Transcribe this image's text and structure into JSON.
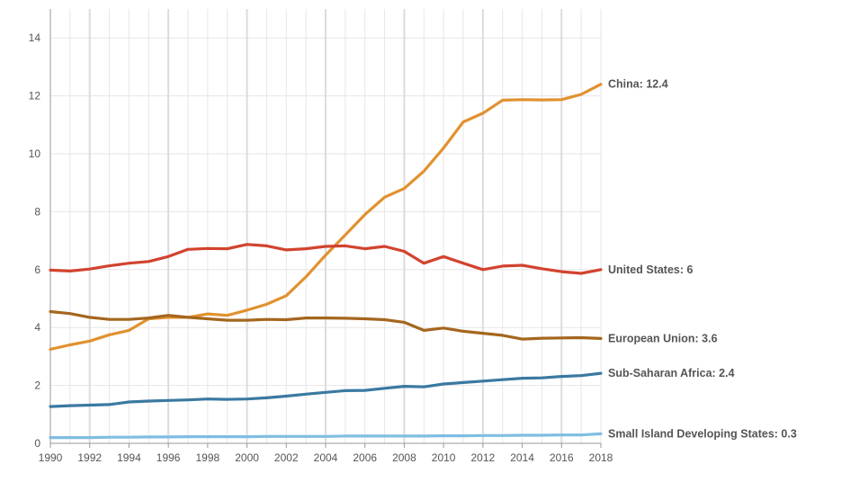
{
  "chart_data": {
    "type": "line",
    "title": "",
    "xlabel": "",
    "ylabel": "",
    "xlim": [
      1990,
      2018
    ],
    "ylim": [
      0,
      15
    ],
    "grid": true,
    "legend": "none (line end labels)",
    "x": [
      1990,
      1991,
      1992,
      1993,
      1994,
      1995,
      1996,
      1997,
      1998,
      1999,
      2000,
      2001,
      2002,
      2003,
      2004,
      2005,
      2006,
      2007,
      2008,
      2009,
      2010,
      2011,
      2012,
      2013,
      2014,
      2015,
      2016,
      2017,
      2018
    ],
    "x_ticks": [
      1990,
      1992,
      1994,
      1996,
      1998,
      2000,
      2002,
      2004,
      2006,
      2008,
      2010,
      2012,
      2014,
      2016,
      2018
    ],
    "x_tick_labels": [
      "1990",
      "1992",
      "1994",
      "1996",
      "1998",
      "2000",
      "2002",
      "2004",
      "2006",
      "2008",
      "2010",
      "2012",
      "2014",
      "2016",
      "2018"
    ],
    "y_ticks": [
      0,
      2,
      4,
      6,
      8,
      10,
      12,
      14
    ],
    "y_tick_labels": [
      "0",
      "2",
      "4",
      "6",
      "8",
      "10",
      "12",
      "14"
    ],
    "series": [
      {
        "name": "China",
        "label": "China: 12.4",
        "color": "#e1912f",
        "values": [
          3.25,
          3.4,
          3.53,
          3.75,
          3.9,
          4.3,
          4.35,
          4.35,
          4.47,
          4.42,
          4.6,
          4.8,
          5.1,
          5.75,
          6.5,
          7.2,
          7.9,
          8.5,
          8.8,
          9.4,
          10.2,
          11.1,
          11.4,
          11.85,
          11.87,
          11.86,
          11.87,
          12.05,
          12.4
        ]
      },
      {
        "name": "United States",
        "label": "United States: 6",
        "color": "#d2432e",
        "values": [
          5.98,
          5.95,
          6.02,
          6.13,
          6.22,
          6.28,
          6.45,
          6.7,
          6.73,
          6.72,
          6.87,
          6.82,
          6.68,
          6.72,
          6.8,
          6.82,
          6.72,
          6.8,
          6.63,
          6.22,
          6.45,
          6.22,
          6.0,
          6.12,
          6.15,
          6.03,
          5.93,
          5.87,
          6.0
        ]
      },
      {
        "name": "European Union",
        "label": "European Union: 3.6",
        "color": "#a4661e",
        "values": [
          4.55,
          4.48,
          4.35,
          4.28,
          4.28,
          4.33,
          4.42,
          4.35,
          4.3,
          4.25,
          4.25,
          4.28,
          4.27,
          4.33,
          4.33,
          4.32,
          4.3,
          4.27,
          4.18,
          3.9,
          3.98,
          3.87,
          3.8,
          3.73,
          3.6,
          3.63,
          3.64,
          3.65,
          3.62
        ]
      },
      {
        "name": "Sub-Saharan Africa",
        "label": "Sub-Saharan Africa: 2.4",
        "color": "#3a79a1",
        "values": [
          1.27,
          1.3,
          1.32,
          1.34,
          1.43,
          1.46,
          1.48,
          1.5,
          1.53,
          1.52,
          1.53,
          1.57,
          1.63,
          1.7,
          1.76,
          1.82,
          1.83,
          1.9,
          1.97,
          1.95,
          2.05,
          2.1,
          2.15,
          2.2,
          2.25,
          2.26,
          2.31,
          2.34,
          2.42
        ]
      },
      {
        "name": "Small Island Developing States",
        "label": "Small Island Developing States: 0.3",
        "color": "#80bde2",
        "values": [
          0.2,
          0.2,
          0.2,
          0.21,
          0.21,
          0.22,
          0.22,
          0.23,
          0.23,
          0.23,
          0.23,
          0.24,
          0.24,
          0.24,
          0.24,
          0.25,
          0.25,
          0.25,
          0.25,
          0.25,
          0.26,
          0.26,
          0.27,
          0.27,
          0.28,
          0.28,
          0.29,
          0.29,
          0.33
        ]
      }
    ]
  }
}
